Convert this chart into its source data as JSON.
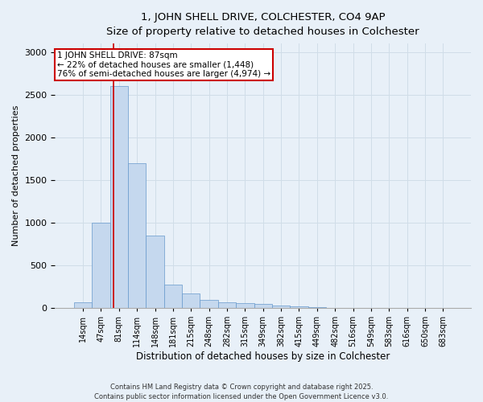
{
  "title_line1": "1, JOHN SHELL DRIVE, COLCHESTER, CO4 9AP",
  "title_line2": "Size of property relative to detached houses in Colchester",
  "xlabel": "Distribution of detached houses by size in Colchester",
  "ylabel": "Number of detached properties",
  "categories": [
    "14sqm",
    "47sqm",
    "81sqm",
    "114sqm",
    "148sqm",
    "181sqm",
    "215sqm",
    "248sqm",
    "282sqm",
    "315sqm",
    "349sqm",
    "382sqm",
    "415sqm",
    "449sqm",
    "482sqm",
    "516sqm",
    "549sqm",
    "583sqm",
    "616sqm",
    "650sqm",
    "683sqm"
  ],
  "values": [
    70,
    1000,
    2600,
    1700,
    850,
    270,
    170,
    90,
    70,
    55,
    45,
    25,
    15,
    10,
    5,
    5,
    3,
    2,
    1,
    1,
    0
  ],
  "bar_color": "#c5d8ee",
  "bar_edge_color": "#6699cc",
  "bar_linewidth": 0.5,
  "grid_color": "#d0dde8",
  "background_color": "#e8f0f8",
  "red_line_color": "#cc0000",
  "annotation_text": "1 JOHN SHELL DRIVE: 87sqm\n← 22% of detached houses are smaller (1,448)\n76% of semi-detached houses are larger (4,974) →",
  "annotation_box_color": "white",
  "annotation_box_edge": "#cc0000",
  "ylim": [
    0,
    3100
  ],
  "yticks": [
    0,
    500,
    1000,
    1500,
    2000,
    2500,
    3000
  ],
  "footnote_line1": "Contains HM Land Registry data © Crown copyright and database right 2025.",
  "footnote_line2": "Contains public sector information licensed under the Open Government Licence v3.0."
}
